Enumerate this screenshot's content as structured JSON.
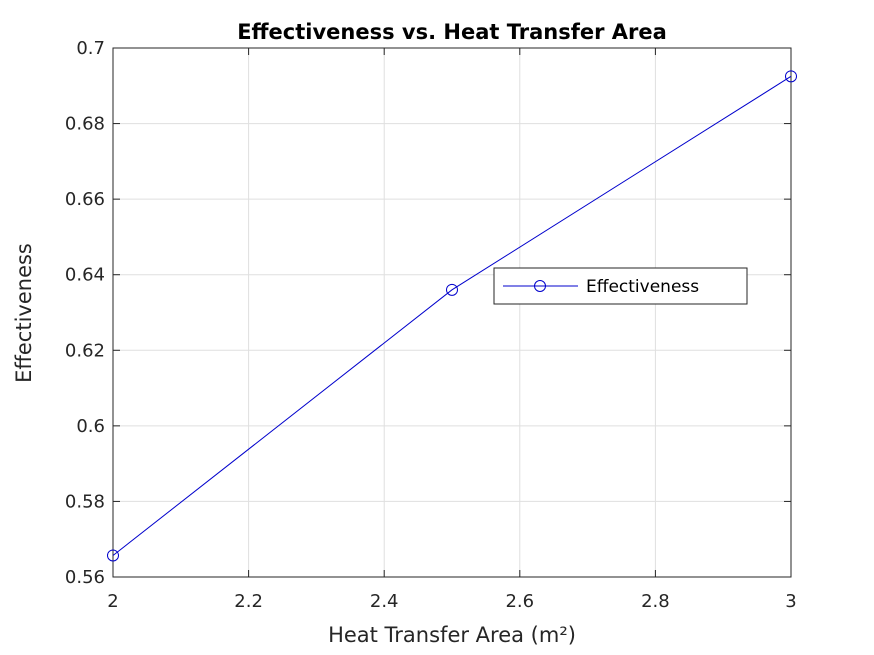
{
  "chart_data": {
    "type": "line",
    "title": "Effectiveness vs. Heat Transfer Area",
    "xlabel": "Heat Transfer Area (m²)",
    "ylabel": "Effectiveness",
    "xlim": [
      2,
      3
    ],
    "ylim": [
      0.56,
      0.7
    ],
    "x_ticks": [
      2,
      2.2,
      2.4,
      2.6,
      2.8,
      3
    ],
    "x_tick_labels": [
      "2",
      "2.2",
      "2.4",
      "2.6",
      "2.8",
      "3"
    ],
    "y_ticks": [
      0.56,
      0.58,
      0.6,
      0.62,
      0.64,
      0.66,
      0.68,
      0.7
    ],
    "y_tick_labels": [
      "0.56",
      "0.58",
      "0.6",
      "0.62",
      "0.64",
      "0.66",
      "0.68",
      "0.7"
    ],
    "grid": true,
    "legend_position": "center-right",
    "series": [
      {
        "name": "Effectiveness",
        "color": "#0000cc",
        "marker": "circle",
        "x": [
          2,
          2.5,
          3
        ],
        "y": [
          0.5657,
          0.636,
          0.6925
        ]
      }
    ]
  }
}
